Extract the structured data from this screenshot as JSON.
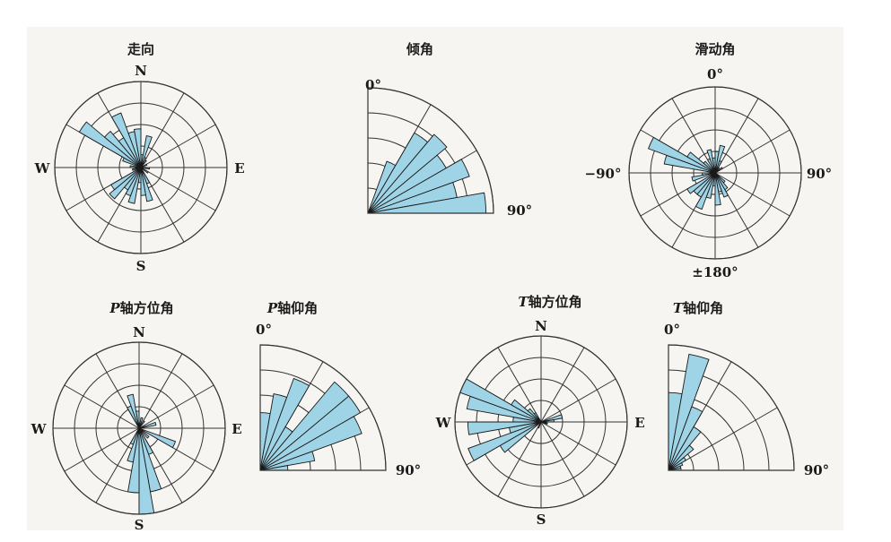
{
  "style": {
    "background": "#ffffff",
    "panel_background": "#f6f5f1",
    "bar_fill": "#9fd4e6",
    "grid_color": "#333333"
  },
  "chart_data": [
    {
      "id": "strike",
      "type": "rose",
      "title": "走向",
      "title_italic_prefix": "",
      "sector": "full",
      "rings": 4,
      "rmax": 4,
      "bin_width": 10,
      "direction_labels": {
        "top": "N",
        "bottom": "S",
        "left": "W",
        "right": "E"
      },
      "values": [
        {
          "angle": 0,
          "value": 0.6
        },
        {
          "angle": 10,
          "value": 1.5
        },
        {
          "angle": 20,
          "value": 0.5
        },
        {
          "angle": 30,
          "value": 0.4
        },
        {
          "angle": 60,
          "value": 0.3
        },
        {
          "angle": 90,
          "value": 0.4
        },
        {
          "angle": 120,
          "value": 0.4
        },
        {
          "angle": 150,
          "value": 0.8
        },
        {
          "angle": 160,
          "value": 1.6
        },
        {
          "angle": 170,
          "value": 1.3
        },
        {
          "angle": 180,
          "value": 0.7
        },
        {
          "angle": 190,
          "value": 1.7
        },
        {
          "angle": 200,
          "value": 1.4
        },
        {
          "angle": 210,
          "value": 1.2
        },
        {
          "angle": 220,
          "value": 1.9
        },
        {
          "angle": 230,
          "value": 1.6
        },
        {
          "angle": 250,
          "value": 0.4
        },
        {
          "angle": 270,
          "value": 0.5
        },
        {
          "angle": 290,
          "value": 0.9
        },
        {
          "angle": 300,
          "value": 3.3
        },
        {
          "angle": 310,
          "value": 2.2
        },
        {
          "angle": 320,
          "value": 1.6
        },
        {
          "angle": 330,
          "value": 2.7
        },
        {
          "angle": 340,
          "value": 1.7
        },
        {
          "angle": 350,
          "value": 1.8
        }
      ]
    },
    {
      "id": "dip",
      "type": "rose",
      "title": "倾角",
      "title_italic_prefix": "",
      "sector": "quarter",
      "rings": 5,
      "rmax": 5,
      "bin_width": 10,
      "range_labels": {
        "start": "0°",
        "end": "90°"
      },
      "values": [
        {
          "angle": 20,
          "value": 2.2
        },
        {
          "angle": 30,
          "value": 3.7
        },
        {
          "angle": 40,
          "value": 4.1
        },
        {
          "angle": 50,
          "value": 3.6
        },
        {
          "angle": 60,
          "value": 4.3
        },
        {
          "angle": 70,
          "value": 3.6
        },
        {
          "angle": 80,
          "value": 4.7
        }
      ]
    },
    {
      "id": "rake",
      "type": "rose",
      "title": "滑动角",
      "title_italic_prefix": "",
      "sector": "full",
      "rings": 4,
      "rmax": 4,
      "bin_width": 10,
      "direction_labels": {
        "top": "0°",
        "bottom": "±180°",
        "left": "−90°",
        "right": "90°"
      },
      "values": [
        {
          "angle": 0,
          "value": 1.0
        },
        {
          "angle": 10,
          "value": 1.3
        },
        {
          "angle": 20,
          "value": 0.6
        },
        {
          "angle": 30,
          "value": 0.3
        },
        {
          "angle": 50,
          "value": 0.4
        },
        {
          "angle": 130,
          "value": 0.6
        },
        {
          "angle": 140,
          "value": 0.9
        },
        {
          "angle": 150,
          "value": 1.2
        },
        {
          "angle": 160,
          "value": 0.9
        },
        {
          "angle": 170,
          "value": 1.5
        },
        {
          "angle": 180,
          "value": 0.6
        },
        {
          "angle": 190,
          "value": 1.2
        },
        {
          "angle": 200,
          "value": 1.8
        },
        {
          "angle": 210,
          "value": 1.3
        },
        {
          "angle": 220,
          "value": 1.3
        },
        {
          "angle": 230,
          "value": 1.5
        },
        {
          "angle": 250,
          "value": 1.1
        },
        {
          "angle": 260,
          "value": 0.6
        },
        {
          "angle": 280,
          "value": 2.4
        },
        {
          "angle": 290,
          "value": 3.3
        },
        {
          "angle": 300,
          "value": 1.5
        },
        {
          "angle": 310,
          "value": 0.7
        },
        {
          "angle": 330,
          "value": 0.7
        },
        {
          "angle": 340,
          "value": 1.1
        },
        {
          "angle": 350,
          "value": 0.7
        }
      ]
    },
    {
      "id": "p-azimuth",
      "type": "rose",
      "title": "轴方位角",
      "title_italic_prefix": "P",
      "sector": "full",
      "rings": 4,
      "rmax": 4,
      "bin_width": 10,
      "direction_labels": {
        "top": "N",
        "bottom": "S",
        "left": "W",
        "right": "E"
      },
      "values": [
        {
          "angle": 10,
          "value": 0.5
        },
        {
          "angle": 30,
          "value": 0.4
        },
        {
          "angle": 70,
          "value": 0.8
        },
        {
          "angle": 110,
          "value": 1.8
        },
        {
          "angle": 130,
          "value": 0.6
        },
        {
          "angle": 150,
          "value": 1.3
        },
        {
          "angle": 160,
          "value": 3.0
        },
        {
          "angle": 170,
          "value": 4.1
        },
        {
          "angle": 180,
          "value": 3.0
        },
        {
          "angle": 190,
          "value": 1.6
        },
        {
          "angle": 200,
          "value": 0.8
        },
        {
          "angle": 330,
          "value": 1.1
        },
        {
          "angle": 340,
          "value": 1.6
        },
        {
          "angle": 350,
          "value": 0.8
        }
      ]
    },
    {
      "id": "p-plunge",
      "type": "rose",
      "title": "轴仰角",
      "title_italic_prefix": "P",
      "sector": "quarter",
      "rings": 5,
      "rmax": 5,
      "bin_width": 10,
      "range_labels": {
        "start": "0°",
        "end": "90°"
      },
      "values": [
        {
          "angle": 0,
          "value": 2.3
        },
        {
          "angle": 10,
          "value": 3.1
        },
        {
          "angle": 20,
          "value": 3.9
        },
        {
          "angle": 30,
          "value": 2.0
        },
        {
          "angle": 40,
          "value": 4.6
        },
        {
          "angle": 50,
          "value": 4.6
        },
        {
          "angle": 60,
          "value": 4.3
        },
        {
          "angle": 70,
          "value": 2.2
        },
        {
          "angle": 80,
          "value": 1.1
        }
      ]
    },
    {
      "id": "t-azimuth",
      "type": "rose",
      "title": "轴方位角",
      "title_italic_prefix": "T",
      "sector": "full",
      "rings": 4,
      "rmax": 4,
      "bin_width": 10,
      "direction_labels": {
        "top": "N",
        "bottom": "S",
        "left": "W",
        "right": "E"
      },
      "values": [
        {
          "angle": 70,
          "value": 1.0
        },
        {
          "angle": 80,
          "value": 0.6
        },
        {
          "angle": 100,
          "value": 0.3
        },
        {
          "angle": 200,
          "value": 0.3
        },
        {
          "angle": 230,
          "value": 2.2
        },
        {
          "angle": 240,
          "value": 3.6
        },
        {
          "angle": 250,
          "value": 1.5
        },
        {
          "angle": 260,
          "value": 3.4
        },
        {
          "angle": 270,
          "value": 1.3
        },
        {
          "angle": 280,
          "value": 3.5
        },
        {
          "angle": 290,
          "value": 4.2
        },
        {
          "angle": 300,
          "value": 1.6
        },
        {
          "angle": 310,
          "value": 0.8
        },
        {
          "angle": 320,
          "value": 0.5
        }
      ]
    },
    {
      "id": "t-plunge",
      "type": "rose",
      "title": "轴仰角",
      "title_italic_prefix": "T",
      "sector": "quarter",
      "rings": 5,
      "rmax": 5,
      "bin_width": 10,
      "range_labels": {
        "start": "0°",
        "end": "90°"
      },
      "values": [
        {
          "angle": 0,
          "value": 3.1
        },
        {
          "angle": 10,
          "value": 4.7
        },
        {
          "angle": 20,
          "value": 2.7
        },
        {
          "angle": 30,
          "value": 2.0
        },
        {
          "angle": 40,
          "value": 1.3
        },
        {
          "angle": 50,
          "value": 0.8
        },
        {
          "angle": 60,
          "value": 0.6
        },
        {
          "angle": 70,
          "value": 0.5
        },
        {
          "angle": 80,
          "value": 0.5
        }
      ]
    }
  ]
}
